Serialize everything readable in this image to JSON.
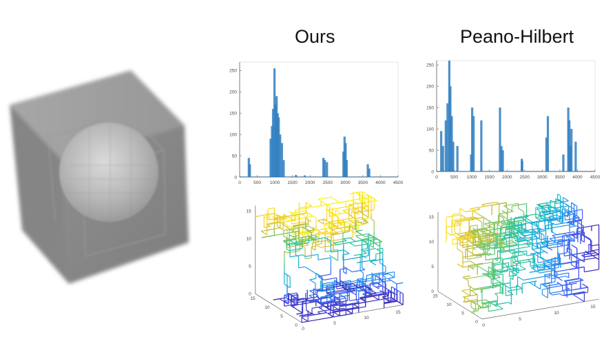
{
  "titles": {
    "left": "Ours",
    "right": "Peano-Hilbert"
  },
  "colors": {
    "bar": "#2f7ec1",
    "axis": "#606060",
    "cube": "#8a8a8a"
  },
  "volume_icon": "volume-cube-with-sphere",
  "chart_data": [
    {
      "type": "bar",
      "panel": "ours-histogram",
      "title": "",
      "xlabel": "",
      "ylabel": "",
      "xlim": [
        0,
        4500
      ],
      "ylim": [
        0,
        270
      ],
      "xticks": [
        0,
        500,
        1000,
        1500,
        2000,
        2500,
        3000,
        3500,
        4000,
        4500
      ],
      "yticks": [
        0,
        50,
        100,
        150,
        200,
        250
      ],
      "x": [
        260,
        290,
        880,
        920,
        950,
        990,
        1020,
        1050,
        1080,
        1110,
        1150,
        1200,
        1250,
        1600,
        1850,
        2380,
        2420,
        2480,
        2950,
        2980,
        3010,
        3040,
        3640,
        3680
      ],
      "values": [
        45,
        30,
        90,
        120,
        160,
        255,
        170,
        190,
        150,
        140,
        100,
        80,
        40,
        5,
        4,
        45,
        40,
        35,
        60,
        95,
        80,
        40,
        30,
        20
      ]
    },
    {
      "type": "bar",
      "panel": "peano-hilbert-histogram",
      "title": "",
      "xlabel": "",
      "ylabel": "",
      "xlim": [
        0,
        4500
      ],
      "ylim": [
        0,
        260
      ],
      "xticks": [
        0,
        500,
        1000,
        1500,
        2000,
        2500,
        3000,
        3500,
        4000,
        4500
      ],
      "yticks": [
        0,
        50,
        100,
        150,
        200,
        250
      ],
      "x": [
        130,
        180,
        260,
        310,
        360,
        390,
        430,
        470,
        590,
        980,
        1010,
        1050,
        1270,
        1800,
        1840,
        1880,
        2420,
        2430,
        3120,
        3160,
        3600,
        3740,
        3770,
        3800,
        3830,
        3950
      ],
      "values": [
        95,
        60,
        120,
        160,
        260,
        200,
        130,
        70,
        60,
        40,
        150,
        130,
        120,
        150,
        60,
        50,
        30,
        25,
        80,
        130,
        40,
        150,
        120,
        60,
        100,
        70
      ]
    },
    {
      "type": "line3d",
      "panel": "ours-curve",
      "title": "",
      "zlim": [
        0,
        16
      ],
      "zticks": [
        0,
        5,
        10,
        15
      ],
      "xticks": [
        0,
        5,
        10,
        15
      ],
      "yticks": [
        0,
        5,
        10,
        15
      ],
      "colormap": [
        "#3e26a8",
        "#4350e8",
        "#2e87f7",
        "#16b1d4",
        "#26c49d",
        "#86c65e",
        "#d6bd3a",
        "#fbd926",
        "#f9fb15"
      ]
    },
    {
      "type": "line3d",
      "panel": "peano-hilbert-curve",
      "title": "",
      "zlim": [
        0,
        16
      ],
      "zticks": [
        0,
        5,
        10,
        15
      ],
      "xticks": [
        0,
        5,
        10,
        15
      ],
      "yticks": [
        0,
        5,
        10,
        15
      ],
      "colormap": [
        "#3e26a8",
        "#4350e8",
        "#2e87f7",
        "#16b1d4",
        "#26c49d",
        "#86c65e",
        "#d6bd3a",
        "#fbd926",
        "#f9fb15"
      ]
    }
  ]
}
